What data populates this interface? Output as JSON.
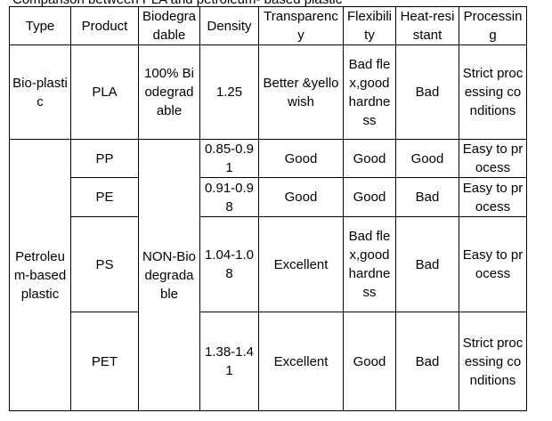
{
  "caption": "Comparison between PLA and petroleum- based plastic",
  "table": {
    "header": [
      "Type",
      "Product",
      "Biodegradable",
      "Density",
      "Transparency",
      "Flexibility",
      "Heat-resistant",
      "Processing"
    ],
    "rows": [
      [
        "Bio-plastic",
        "PLA",
        "100% Biodegradable",
        "1.25",
        "Better &yellowish",
        "Bad flex,good hardness",
        "Bad",
        "Strict processing conditions"
      ],
      [
        "Petroleum-based plastic",
        "PP",
        "NON-Biodegradable",
        "0.85-0.91",
        "Good",
        "Good",
        "Good",
        "Easy to process"
      ],
      [
        "PE",
        "0.91-0.98",
        "Good",
        "Good",
        "Bad",
        "Easy to process"
      ],
      [
        "PS",
        "1.04-1.08",
        "Excellent",
        "Bad flex,good hardness",
        "Bad",
        "Easy to process"
      ],
      [
        "PET",
        "1.38-1.41",
        "Excellent",
        "Good",
        "Bad",
        "Strict processing conditions"
      ]
    ]
  }
}
